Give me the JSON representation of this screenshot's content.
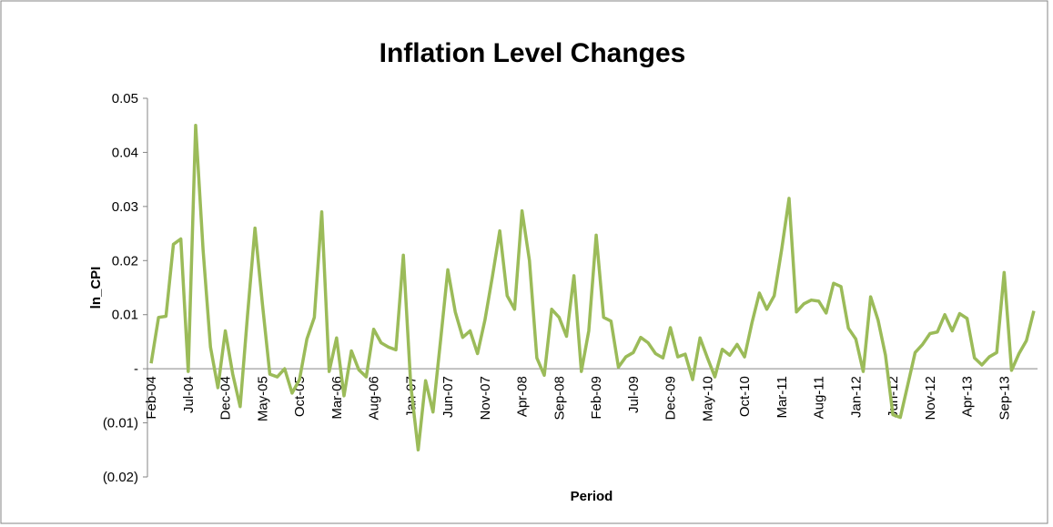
{
  "chart_data": {
    "type": "line",
    "title": "Inflation Level Changes",
    "x_label": "Period",
    "y_label": "ln_CPI",
    "categories": [
      "Feb-04",
      null,
      null,
      null,
      null,
      "Jul-04",
      null,
      null,
      null,
      null,
      "Dec-04",
      null,
      null,
      null,
      null,
      "May-05",
      null,
      null,
      null,
      null,
      "Oct-05",
      null,
      null,
      null,
      null,
      "Mar-06",
      null,
      null,
      null,
      null,
      "Aug-06",
      null,
      null,
      null,
      null,
      "Jan-07",
      null,
      null,
      null,
      null,
      "Jun-07",
      null,
      null,
      null,
      null,
      "Nov-07",
      null,
      null,
      null,
      null,
      "Apr-08",
      null,
      null,
      null,
      null,
      "Sep-08",
      null,
      null,
      null,
      null,
      "Feb-09",
      null,
      null,
      null,
      null,
      "Jul-09",
      null,
      null,
      null,
      null,
      "Dec-09",
      null,
      null,
      null,
      null,
      "May-10",
      null,
      null,
      null,
      null,
      "Oct-10",
      null,
      null,
      null,
      null,
      "Mar-11",
      null,
      null,
      null,
      null,
      "Aug-11",
      null,
      null,
      null,
      null,
      "Jan-12",
      null,
      null,
      null,
      null,
      "Jun-12",
      null,
      null,
      null,
      null,
      "Nov-12",
      null,
      null,
      null,
      null,
      "Apr-13",
      null,
      null,
      null,
      null,
      "Sep-13",
      null,
      null,
      null,
      null
    ],
    "series": [
      {
        "name": "ln_CPI",
        "color": "#9bbb59",
        "values": [
          0.001,
          0.0095,
          0.0097,
          0.023,
          0.024,
          -0.0005,
          0.045,
          0.022,
          0.004,
          -0.0035,
          0.007,
          -0.001,
          -0.007,
          0.01,
          0.026,
          0.012,
          -0.001,
          -0.0015,
          0,
          -0.0045,
          -0.002,
          0.0055,
          0.0095,
          0.029,
          -0.0005,
          0.0057,
          -0.005,
          0.0033,
          -0.0002,
          -0.0015,
          0.0073,
          0.0048,
          0.004,
          0.0035,
          0.021,
          -0.003,
          -0.015,
          -0.0022,
          -0.008,
          0.005,
          0.0183,
          0.0105,
          0.0058,
          0.007,
          0.0028,
          0.009,
          0.017,
          0.0255,
          0.0135,
          0.011,
          0.0292,
          0.02,
          0.002,
          -0.0012,
          0.011,
          0.0095,
          0.006,
          0.0172,
          -0.0005,
          0.007,
          0.0247,
          0.0095,
          0.0088,
          0.0003,
          0.0022,
          0.003,
          0.0058,
          0.0048,
          0.0028,
          0.002,
          0.0076,
          0.0022,
          0.0027,
          -0.002,
          0.0057,
          0.002,
          -0.0015,
          0.0036,
          0.0025,
          0.0045,
          0.0022,
          0.0085,
          0.014,
          0.011,
          0.0135,
          0.022,
          0.0315,
          0.0105,
          0.012,
          0.0127,
          0.0125,
          0.0103,
          0.0158,
          0.0152,
          0.0075,
          0.0055,
          -0.0005,
          0.0133,
          0.009,
          0.0025,
          -0.0085,
          -0.009,
          -0.003,
          0.003,
          0.0045,
          0.0065,
          0.0068,
          0.01,
          0.007,
          0.0102,
          0.0093,
          0.002,
          0.0007,
          0.0022,
          0.003,
          0.0178,
          -0.0003,
          0.0028,
          0.0052,
          0.0107
        ]
      }
    ],
    "ylim": [
      -0.02,
      0.05
    ],
    "yticks": [
      {
        "value": -0.02,
        "label": "(0.02)"
      },
      {
        "value": -0.01,
        "label": "(0.01)"
      },
      {
        "value": 0,
        "label": "-"
      },
      0.01,
      0.02,
      0.03,
      0.04,
      0.05
    ],
    "grid": false,
    "legend": false
  }
}
